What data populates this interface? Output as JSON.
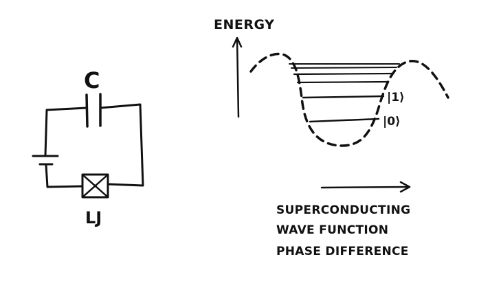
{
  "circuit": {
    "capacitor_label": "C",
    "inductor_label": "LJ"
  },
  "energy_diagram": {
    "y_axis_label": "ENERGY",
    "state_labels": [
      "|0⟩",
      "|1⟩"
    ],
    "x_axis_label_lines": [
      "SUPERCONDUCTING",
      "WAVE FUNCTION",
      "PHASE DIFFERENCE"
    ]
  },
  "colors": {
    "ink": "#111111",
    "background": "#ffffff"
  }
}
